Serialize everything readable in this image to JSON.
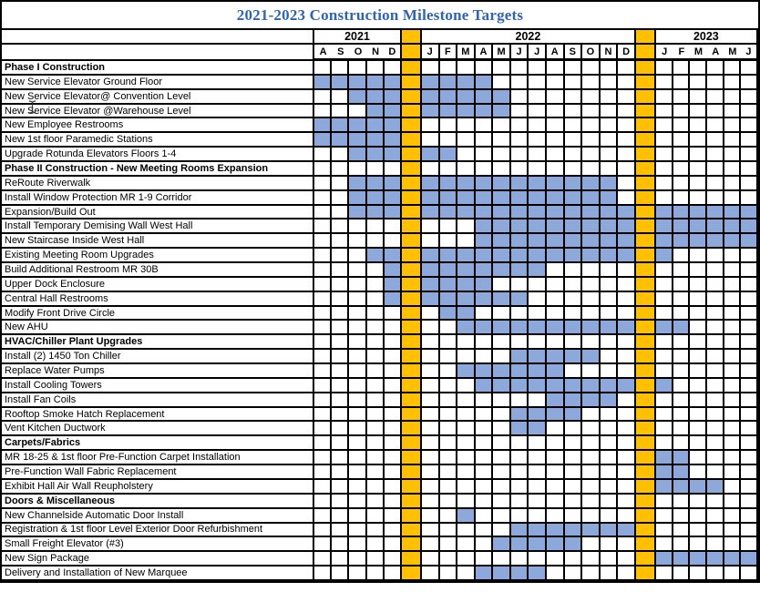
{
  "title": "2021-2023 Construction Milestone Targets",
  "colors": {
    "title_text": "#2E64B0",
    "bar_fill": "#8DA9DB",
    "separator_fill": "#FFC000",
    "grid_line": "#000000"
  },
  "timeline": {
    "years": [
      {
        "label": "2021",
        "months": [
          "A",
          "S",
          "O",
          "N",
          "D"
        ]
      },
      {
        "label": "2022",
        "months": [
          "J",
          "F",
          "M",
          "A",
          "M",
          "J",
          "J",
          "A",
          "S",
          "O",
          "N",
          "D"
        ]
      },
      {
        "label": "2023",
        "months": [
          "J",
          "F",
          "M",
          "A",
          "M",
          "J"
        ]
      }
    ]
  },
  "chart_data": {
    "type": "bar",
    "subtype": "gantt",
    "title": "2021-2023 Construction Milestone Targets",
    "legend": [],
    "grid": "on",
    "columns": [
      "Aug 2021",
      "Sep 2021",
      "Oct 2021",
      "Nov 2021",
      "Dec 2021",
      "Jan 2022",
      "Feb 2022",
      "Mar 2022",
      "Apr 2022",
      "May 2022",
      "Jun 2022",
      "Jul 2022",
      "Aug 2022",
      "Sep 2022",
      "Oct 2022",
      "Nov 2022",
      "Dec 2022",
      "Jan 2023",
      "Feb 2023",
      "Mar 2023",
      "Apr 2023",
      "May 2023",
      "Jun 2023"
    ],
    "sections": [
      {
        "name": "Phase I Construction",
        "tasks": [
          {
            "name": "New Service Elevator Ground Floor",
            "start": "Aug 2021",
            "end": "Apr 2022",
            "start_index": 0,
            "end_index": 8
          },
          {
            "name": "New Service Elevator@ Convention Level",
            "start": "Oct 2021",
            "end": "May 2022",
            "start_index": 2,
            "end_index": 9
          },
          {
            "name": "New Service Elevator @Warehouse Level",
            "start": "Nov 2021",
            "end": "May 2022",
            "start_index": 3,
            "end_index": 9
          },
          {
            "name": "New Employee Restrooms",
            "start": "Aug 2021",
            "end": "Dec 2021",
            "start_index": 0,
            "end_index": 4
          },
          {
            "name": "New 1st floor Paramedic Stations",
            "start": "Aug 2021",
            "end": "Dec 2021",
            "start_index": 0,
            "end_index": 4
          },
          {
            "name": "Upgrade Rotunda Elevators Floors 1-4",
            "start": "Oct 2021",
            "end": "Feb 2022",
            "start_index": 2,
            "end_index": 6
          }
        ]
      },
      {
        "name": "Phase II Construction - New Meeting Rooms Expansion",
        "tasks": [
          {
            "name": "ReRoute Riverwalk",
            "start": "Oct 2021",
            "end": "Nov 2022",
            "start_index": 2,
            "end_index": 15
          },
          {
            "name": "Install Window Protection MR 1-9 Corridor",
            "start": "Oct 2021",
            "end": "Nov 2022",
            "start_index": 2,
            "end_index": 15
          },
          {
            "name": "Expansion/Build Out",
            "start": "Oct 2021",
            "end": "Jun 2023",
            "start_index": 2,
            "end_index": 22
          },
          {
            "name": "Install Temporary Demising Wall West Hall",
            "start": "Apr 2022",
            "end": "Jun 2023",
            "start_index": 8,
            "end_index": 22
          },
          {
            "name": "New Staircase Inside West Hall",
            "start": "Apr 2022",
            "end": "Jun 2023",
            "start_index": 8,
            "end_index": 22
          },
          {
            "name": "Existing Meeting Room Upgrades",
            "start": "Nov 2021",
            "end": "Jan 2023",
            "start_index": 3,
            "end_index": 17
          },
          {
            "name": "Build Additional Restroom MR 30B",
            "start": "Dec 2021",
            "end": "Jul 2022",
            "start_index": 4,
            "end_index": 11
          },
          {
            "name": "Upper Dock Enclosure",
            "start": "Dec 2021",
            "end": "Apr 2022",
            "start_index": 4,
            "end_index": 8
          },
          {
            "name": "Central Hall Restrooms",
            "start": "Dec 2021",
            "end": "Jun 2022",
            "start_index": 4,
            "end_index": 10
          },
          {
            "name": "Modify Front Drive Circle",
            "start": "Feb 2022",
            "end": "Mar 2022",
            "start_index": 6,
            "end_index": 7
          },
          {
            "name": "New AHU",
            "start": "Mar 2022",
            "end": "Feb 2023",
            "start_index": 7,
            "end_index": 18
          }
        ]
      },
      {
        "name": "HVAC/Chiller Plant Upgrades",
        "tasks": [
          {
            "name": "Install (2) 1450 Ton Chiller",
            "start": "Jun 2022",
            "end": "Oct 2022",
            "start_index": 10,
            "end_index": 14
          },
          {
            "name": "Replace Water Pumps",
            "start": "Mar 2022",
            "end": "Aug 2022",
            "start_index": 7,
            "end_index": 12
          },
          {
            "name": "Install Cooling Towers",
            "start": "Apr 2022",
            "end": "Jan 2023",
            "start_index": 8,
            "end_index": 17
          },
          {
            "name": "Install Fan Coils",
            "start": "Aug 2022",
            "end": "Nov 2022",
            "start_index": 12,
            "end_index": 15
          },
          {
            "name": "Rooftop Smoke Hatch Replacement",
            "start": "Jun 2022",
            "end": "Sep 2022",
            "start_index": 10,
            "end_index": 13
          },
          {
            "name": "Vent Kitchen Ductwork",
            "start": "Jun 2022",
            "end": "Jul 2022",
            "start_index": 10,
            "end_index": 11
          }
        ]
      },
      {
        "name": "Carpets/Fabrics",
        "tasks": [
          {
            "name": "MR 18-25  & 1st floor Pre-Function Carpet Installation",
            "start": "Jan 2023",
            "end": "Feb 2023",
            "start_index": 17,
            "end_index": 18
          },
          {
            "name": "Pre-Function Wall Fabric Replacement",
            "start": "Jan 2023",
            "end": "Feb 2023",
            "start_index": 17,
            "end_index": 18
          },
          {
            "name": "Exhibit Hall Air Wall Reupholstery",
            "start": "Jan 2023",
            "end": "Apr 2023",
            "start_index": 17,
            "end_index": 20
          }
        ]
      },
      {
        "name": "Doors & Miscellaneous",
        "tasks": [
          {
            "name": "New Channelside Automatic Door Install",
            "start": "Mar 2022",
            "end": "Mar 2022",
            "start_index": 7,
            "end_index": 7
          },
          {
            "name": "Registration & 1st floor Level Exterior Door Refurbishment",
            "start": "Jun 2022",
            "end": "Dec 2022",
            "start_index": 10,
            "end_index": 16
          },
          {
            "name": "Small Freight Elevator (#3)",
            "start": "May 2022",
            "end": "Sep 2022",
            "start_index": 9,
            "end_index": 13
          },
          {
            "name": "New Sign Package",
            "start": "Jan 2023",
            "end": "Jun 2023",
            "start_index": 17,
            "end_index": 22
          },
          {
            "name": "Delivery and Installation of New Marquee",
            "start": "Apr 2022",
            "end": "Jul 2022",
            "start_index": 8,
            "end_index": 11
          }
        ]
      }
    ]
  }
}
